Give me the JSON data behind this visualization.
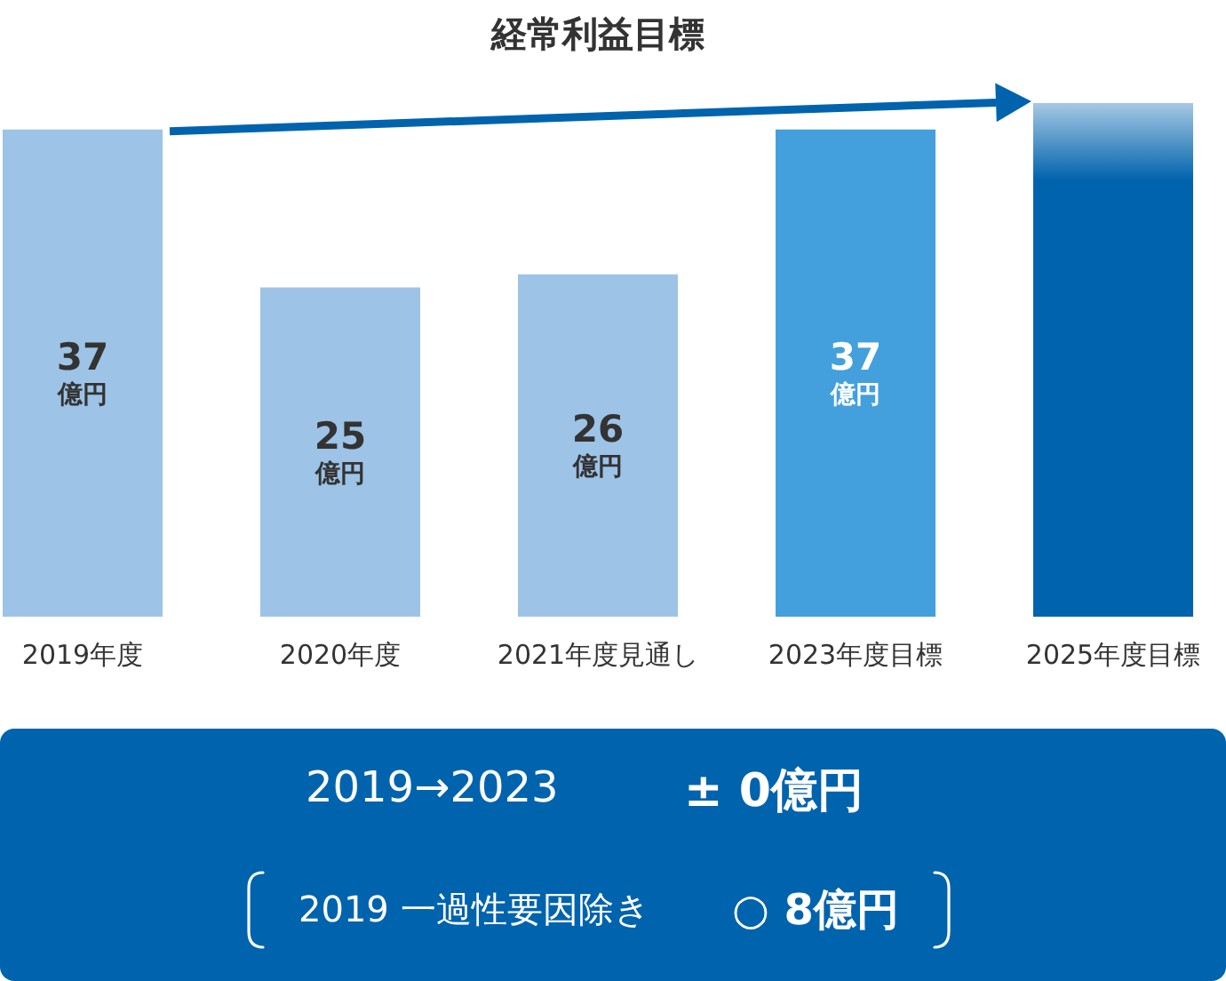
{
  "chart_data": {
    "type": "bar",
    "title": "経常利益目標",
    "categories": [
      "2019年度",
      "2020年度",
      "2021年度見通し",
      "2023年度目標",
      "2025年度目標"
    ],
    "values": [
      37,
      25,
      26,
      37,
      39
    ],
    "colors": [
      "#9dc3e6",
      "#9dc3e6",
      "#9dc3e6",
      "#44a0dc",
      "#0063ad"
    ],
    "value_labels": [
      "37\n億円",
      "25\n億円",
      "26\n億円",
      "37\n億円",
      null
    ],
    "tick_labels": "x",
    "annotations": [
      "2019→2023",
      "± 0億円",
      "2019 一過性要因除き",
      "○ 8億円"
    ]
  }
}
